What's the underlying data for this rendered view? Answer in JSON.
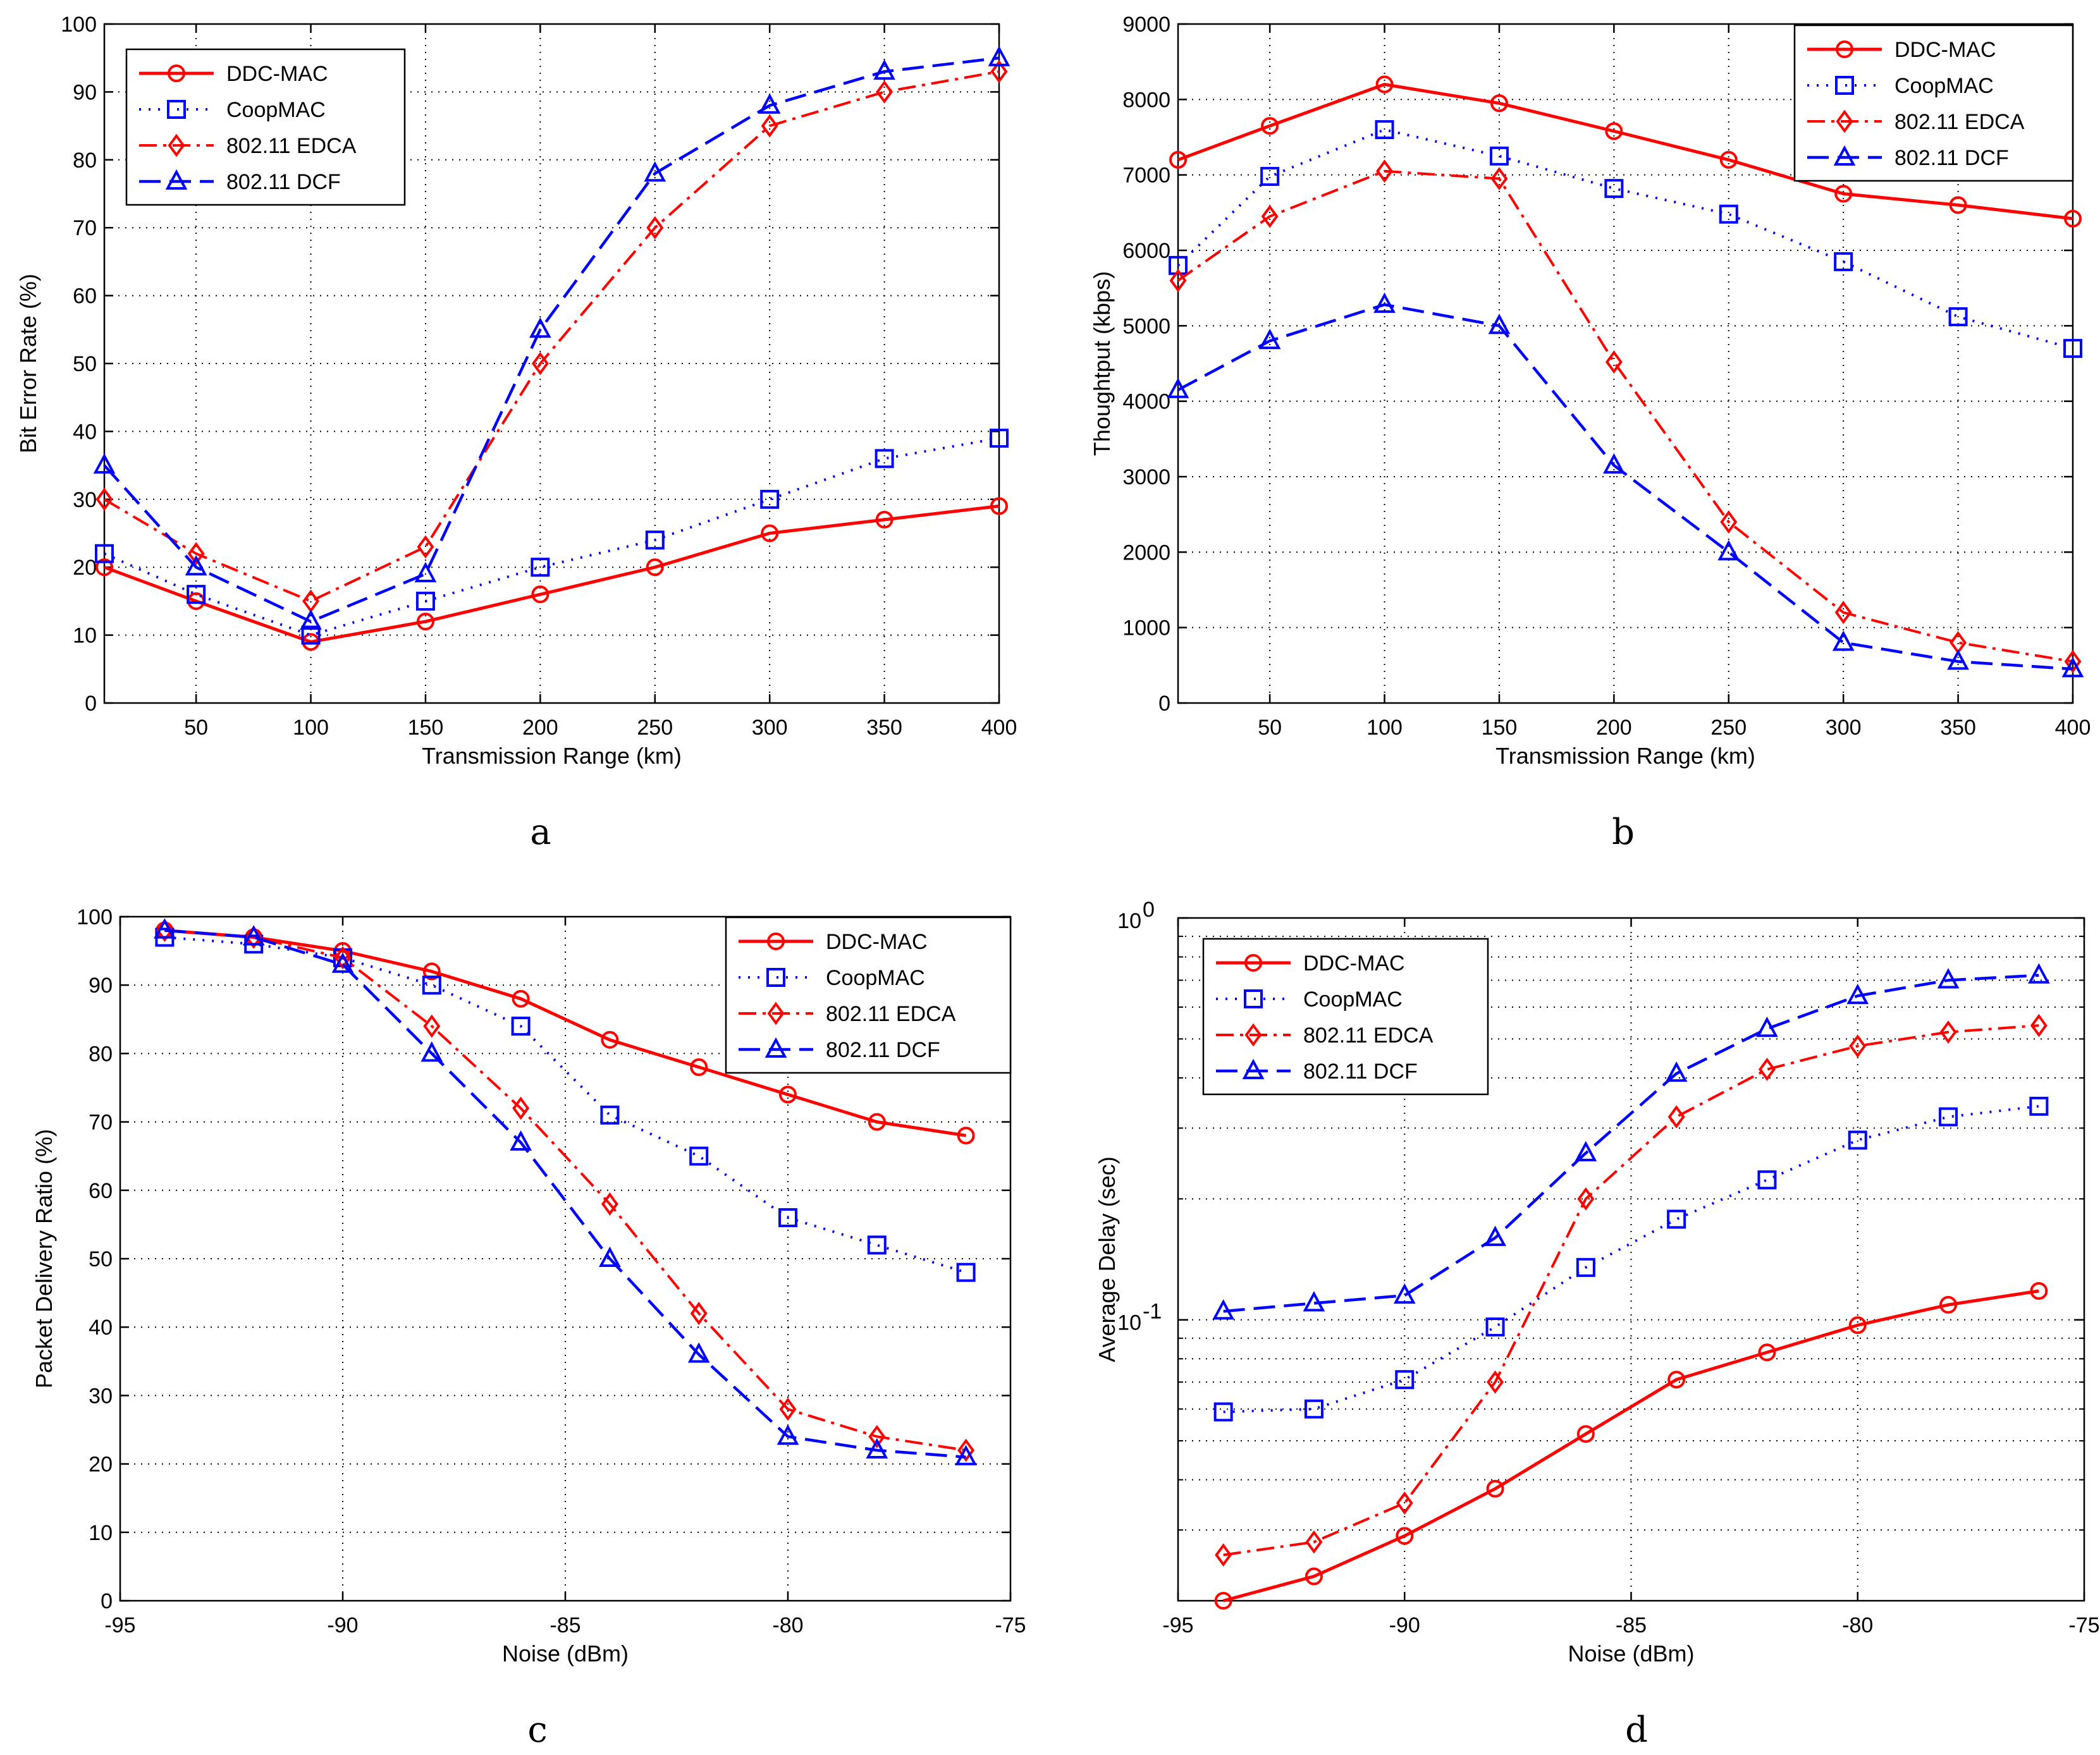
{
  "colors": {
    "red": "#ff0000",
    "blue": "#0000ff",
    "grid": "#000000",
    "axis": "#000000"
  },
  "chart_data": [
    {
      "type": "line",
      "panel_label": "a",
      "xlabel": "Transmission Range (km)",
      "ylabel": "Bit Error Rate (%)",
      "yscale": "linear",
      "xlim": [
        10,
        400
      ],
      "ylim": [
        0,
        100
      ],
      "xticks": [
        50,
        100,
        150,
        200,
        250,
        300,
        350,
        400
      ],
      "yticks": [
        0,
        10,
        20,
        30,
        40,
        50,
        60,
        70,
        80,
        90,
        100
      ],
      "legend_position": "top-left",
      "x": [
        10,
        50,
        100,
        150,
        200,
        250,
        300,
        350,
        400
      ],
      "series": [
        {
          "name": "DDC-MAC",
          "values": [
            20,
            15,
            9,
            12,
            16,
            20,
            25,
            27,
            29
          ]
        },
        {
          "name": "CoopMAC",
          "values": [
            22,
            16,
            10,
            15,
            20,
            24,
            30,
            36,
            39
          ]
        },
        {
          "name": "802.11 EDCA",
          "values": [
            30,
            22,
            15,
            23,
            50,
            70,
            85,
            90,
            93
          ]
        },
        {
          "name": "802.11 DCF",
          "values": [
            35,
            20,
            12,
            19,
            55,
            78,
            88,
            93,
            95
          ]
        }
      ]
    },
    {
      "type": "line",
      "panel_label": "b",
      "xlabel": "Transmission Range (km)",
      "ylabel": "Thoughtput (kbps)",
      "yscale": "linear",
      "xlim": [
        10,
        400
      ],
      "ylim": [
        0,
        9000
      ],
      "xticks": [
        50,
        100,
        150,
        200,
        250,
        300,
        350,
        400
      ],
      "yticks": [
        0,
        1000,
        2000,
        3000,
        4000,
        5000,
        6000,
        7000,
        8000,
        9000
      ],
      "legend_position": "top-right",
      "x": [
        10,
        50,
        100,
        150,
        200,
        250,
        300,
        350,
        400
      ],
      "series": [
        {
          "name": "DDC-MAC",
          "values": [
            7200,
            7650,
            8200,
            7950,
            7580,
            7200,
            6750,
            6600,
            6420
          ]
        },
        {
          "name": "CoopMAC",
          "values": [
            5800,
            6980,
            7600,
            7250,
            6820,
            6480,
            5850,
            5120,
            4700
          ]
        },
        {
          "name": "802.11 EDCA",
          "values": [
            5600,
            6450,
            7050,
            6950,
            4520,
            2400,
            1200,
            800,
            550
          ]
        },
        {
          "name": "802.11 DCF",
          "values": [
            4150,
            4800,
            5280,
            5000,
            3150,
            2000,
            800,
            550,
            450
          ]
        }
      ]
    },
    {
      "type": "line",
      "panel_label": "c",
      "xlabel": "Noise (dBm)",
      "ylabel": "Packet Delivery Ratio (%)",
      "yscale": "linear",
      "xlim": [
        -95,
        -75
      ],
      "ylim": [
        0,
        100
      ],
      "xticks": [
        -95,
        -90,
        -85,
        -80,
        -75
      ],
      "yticks": [
        0,
        10,
        20,
        30,
        40,
        50,
        60,
        70,
        80,
        90,
        100
      ],
      "legend_position": "top-right",
      "x": [
        -94,
        -92,
        -90,
        -88,
        -86,
        -84,
        -82,
        -80,
        -78,
        -76
      ],
      "series": [
        {
          "name": "DDC-MAC",
          "values": [
            98,
            97,
            95,
            92,
            88,
            82,
            78,
            74,
            70,
            68
          ]
        },
        {
          "name": "CoopMAC",
          "values": [
            97,
            96,
            94,
            90,
            84,
            71,
            65,
            56,
            52,
            48
          ]
        },
        {
          "name": "802.11 EDCA",
          "values": [
            98,
            97,
            94,
            84,
            72,
            58,
            42,
            28,
            24,
            22
          ]
        },
        {
          "name": "802.11 DCF",
          "values": [
            98,
            97,
            93,
            80,
            67,
            50,
            36,
            24,
            22,
            21
          ]
        }
      ]
    },
    {
      "type": "line",
      "panel_label": "d",
      "xlabel": "Noise (dBm)",
      "ylabel": "Average Delay (sec)",
      "yscale": "log",
      "xlim": [
        -95,
        -75
      ],
      "ylim": [
        0.02,
        1
      ],
      "xticks": [
        -95,
        -90,
        -85,
        -80,
        -75
      ],
      "ytick_labels": [
        {
          "value": 1,
          "base": "10",
          "exp": "0"
        },
        {
          "value": 0.1,
          "base": "10",
          "exp": "-1"
        }
      ],
      "legend_position": "top-left",
      "x": [
        -94,
        -92,
        -90,
        -88,
        -86,
        -84,
        -82,
        -80,
        -78,
        -76
      ],
      "series": [
        {
          "name": "DDC-MAC",
          "values": [
            0.02,
            0.023,
            0.029,
            0.038,
            0.052,
            0.071,
            0.083,
            0.097,
            0.109,
            0.118
          ]
        },
        {
          "name": "CoopMAC",
          "values": [
            0.059,
            0.06,
            0.071,
            0.096,
            0.135,
            0.178,
            0.223,
            0.28,
            0.32,
            0.34
          ]
        },
        {
          "name": "802.11 EDCA",
          "values": [
            0.026,
            0.028,
            0.035,
            0.07,
            0.2,
            0.32,
            0.42,
            0.48,
            0.52,
            0.54
          ]
        },
        {
          "name": "802.11 DCF",
          "values": [
            0.105,
            0.11,
            0.115,
            0.16,
            0.26,
            0.41,
            0.53,
            0.64,
            0.7,
            0.72
          ]
        }
      ]
    }
  ]
}
